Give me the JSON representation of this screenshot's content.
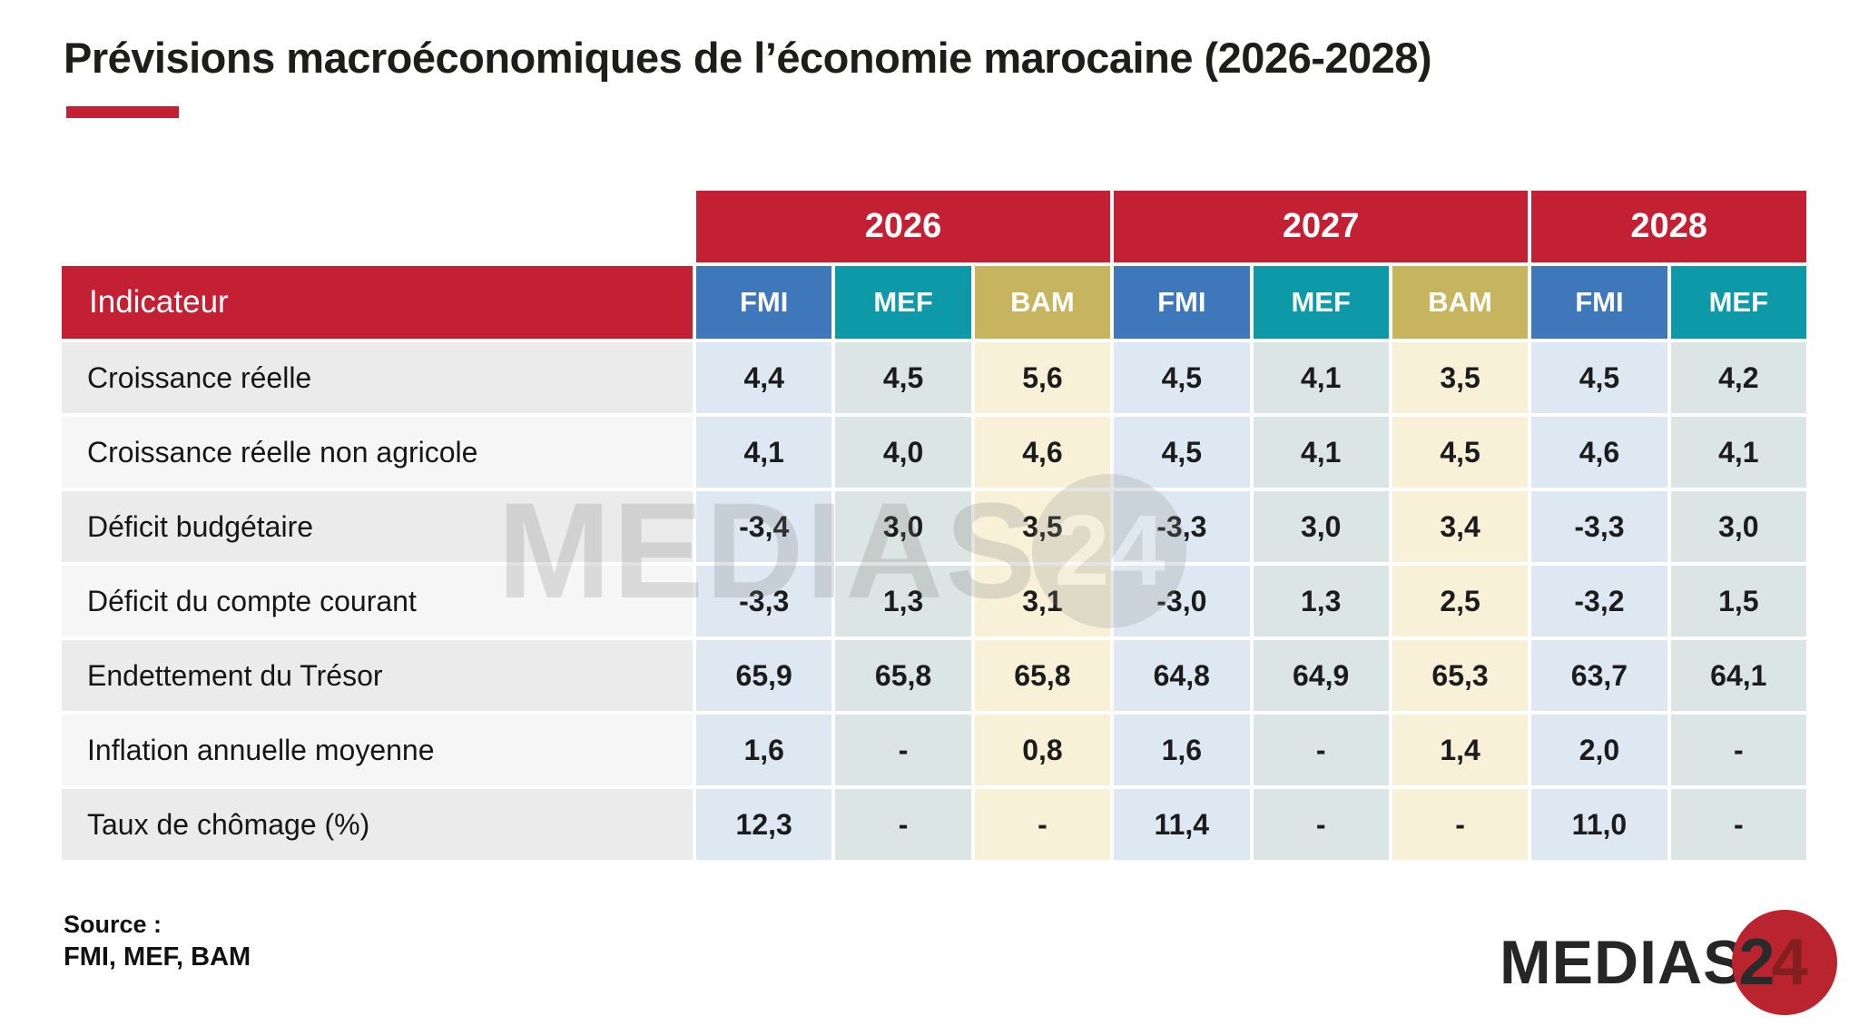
{
  "title": "Prévisions macroéconomiques de l’économie marocaine (2026-2028)",
  "table": {
    "indicator_header": "Indicateur",
    "year_groups": [
      {
        "label": "2026",
        "orgs": [
          "FMI",
          "MEF",
          "BAM"
        ]
      },
      {
        "label": "2027",
        "orgs": [
          "FMI",
          "MEF",
          "BAM"
        ]
      },
      {
        "label": "2028",
        "orgs": [
          "FMI",
          "MEF"
        ]
      }
    ],
    "columns": [
      {
        "org": "FMI",
        "year": "2026"
      },
      {
        "org": "MEF",
        "year": "2026"
      },
      {
        "org": "BAM",
        "year": "2026"
      },
      {
        "org": "FMI",
        "year": "2027"
      },
      {
        "org": "MEF",
        "year": "2027"
      },
      {
        "org": "BAM",
        "year": "2027"
      },
      {
        "org": "FMI",
        "year": "2028"
      },
      {
        "org": "MEF",
        "year": "2028"
      }
    ],
    "rows": [
      {
        "label": "Croissance réelle",
        "values": [
          "4,4",
          "4,5",
          "5,6",
          "4,5",
          "4,1",
          "3,5",
          "4,5",
          "4,2"
        ]
      },
      {
        "label": "Croissance réelle non agricole",
        "values": [
          "4,1",
          "4,0",
          "4,6",
          "4,5",
          "4,1",
          "4,5",
          "4,6",
          "4,1"
        ]
      },
      {
        "label": "Déficit budgétaire",
        "values": [
          "-3,4",
          "3,0",
          "3,5",
          "-3,3",
          "3,0",
          "3,4",
          "-3,3",
          "3,0"
        ]
      },
      {
        "label": "Déficit du compte courant",
        "values": [
          "-3,3",
          "1,3",
          "3,1",
          "-3,0",
          "1,3",
          "2,5",
          "-3,2",
          "1,5"
        ]
      },
      {
        "label": "Endettement du Trésor",
        "values": [
          "65,9",
          "65,8",
          "65,8",
          "64,8",
          "64,9",
          "65,3",
          "63,7",
          "64,1"
        ]
      },
      {
        "label": "Inflation annuelle moyenne",
        "values": [
          "1,6",
          "-",
          "0,8",
          "1,6",
          "-",
          "1,4",
          "2,0",
          "-"
        ]
      },
      {
        "label": "Taux de chômage (%)",
        "values": [
          "12,3",
          "-",
          "-",
          "11,4",
          "-",
          "-",
          "11,0",
          "-"
        ]
      }
    ]
  },
  "source": {
    "label": "Source :",
    "value": "FMI, MEF, BAM"
  },
  "watermark": {
    "text": "MEDIAS",
    "number": "24"
  },
  "logo": {
    "text": "MEDIAS",
    "digit2": "2",
    "digit4": "4"
  },
  "colors": {
    "red": "#c32033",
    "fmi_blue": "#3e77ba",
    "mef_teal": "#0e99a9",
    "bam_gold": "#c6b45f",
    "fmi_tint": "#dde8f2",
    "mef_tint": "#dbe5e3",
    "bam_tint": "#f8f1d8",
    "row_odd": "#ebebeb",
    "row_even": "#f6f6f6"
  },
  "chart_data": {
    "type": "table",
    "title": "Prévisions macroéconomiques de l’économie marocaine (2026-2028)",
    "categories": [
      "Croissance réelle",
      "Croissance réelle non agricole",
      "Déficit budgétaire",
      "Déficit du compte courant",
      "Endettement du Trésor",
      "Inflation annuelle moyenne",
      "Taux de chômage (%)"
    ],
    "series": [
      {
        "name": "FMI 2026",
        "values": [
          4.4,
          4.1,
          -3.4,
          -3.3,
          65.9,
          1.6,
          12.3
        ]
      },
      {
        "name": "MEF 2026",
        "values": [
          4.5,
          4.0,
          3.0,
          1.3,
          65.8,
          null,
          null
        ]
      },
      {
        "name": "BAM 2026",
        "values": [
          5.6,
          4.6,
          3.5,
          3.1,
          65.8,
          0.8,
          null
        ]
      },
      {
        "name": "FMI 2027",
        "values": [
          4.5,
          4.5,
          -3.3,
          -3.0,
          64.8,
          1.6,
          11.4
        ]
      },
      {
        "name": "MEF 2027",
        "values": [
          4.1,
          4.1,
          3.0,
          1.3,
          64.9,
          null,
          null
        ]
      },
      {
        "name": "BAM 2027",
        "values": [
          3.5,
          4.5,
          3.4,
          2.5,
          65.3,
          1.4,
          null
        ]
      },
      {
        "name": "FMI 2028",
        "values": [
          4.5,
          4.6,
          -3.3,
          -3.2,
          63.7,
          2.0,
          11.0
        ]
      },
      {
        "name": "MEF 2028",
        "values": [
          4.2,
          4.1,
          3.0,
          1.5,
          64.1,
          null,
          null
        ]
      }
    ],
    "source": "FMI, MEF, BAM"
  }
}
